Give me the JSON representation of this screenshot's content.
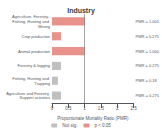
{
  "chart_data": {
    "type": "bar",
    "orientation": "horizontal",
    "title": "Industry",
    "xlabel": "Proportionate Mortality Ratio (PMR)",
    "categories": [
      "Agriculture, Forestry, Fishing, Hunting and Mining",
      "Crop production",
      "Animal production",
      "Forestry & logging",
      "Fishing, Hunting and Trapping",
      "Agriculture and Forestry Support activities"
    ],
    "series": [
      {
        "name": "Not sig.",
        "color": "#c0c0c0",
        "values": [
          null,
          null,
          null,
          0.275,
          0.18,
          0.275
        ],
        "value_labels": [
          null,
          null,
          null,
          "PMR = 0.275",
          "PMR = 0.18",
          "PMR = 0.275"
        ]
      },
      {
        "name": "p < 0.05",
        "color": "#e8928c",
        "values": [
          1.001,
          0.275,
          1.0,
          null,
          null,
          null
        ],
        "value_labels": [
          "PMR = 1.001",
          "PMR = 0.275",
          "PMR = 1.000",
          null,
          null,
          null
        ]
      }
    ],
    "reference_line": 1.0,
    "xlim": [
      0,
      2.5
    ],
    "xticks": [
      0,
      0.5,
      1.0,
      1.5,
      2.0,
      2.5
    ],
    "data_labels": true,
    "legend": "bottom",
    "grid": false
  }
}
